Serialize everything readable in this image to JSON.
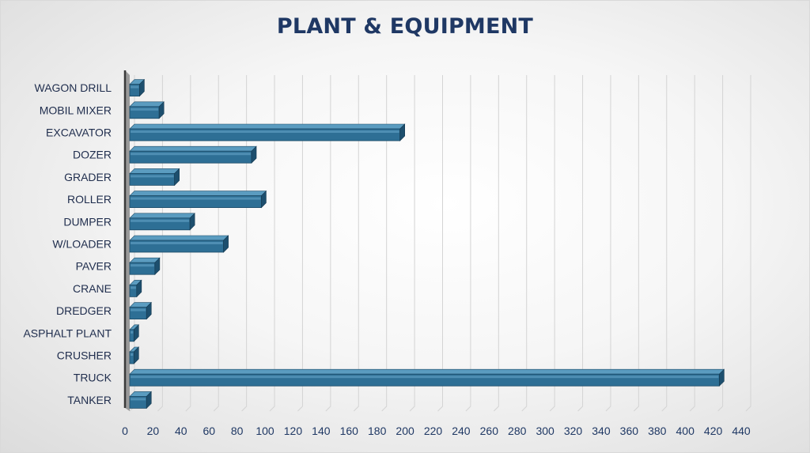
{
  "chart_data": {
    "type": "bar",
    "orientation": "horizontal",
    "title": "PLANT & EQUIPMENT",
    "xlabel": "",
    "ylabel": "",
    "categories": [
      "WAGON DRILL",
      "MOBIL MIXER",
      "EXCAVATOR",
      "DOZER",
      "GRADER",
      "ROLLER",
      "DUMPER",
      "W/LOADER",
      "PAVER",
      "CRANE",
      "DREDGER",
      "ASPHALT PLANT",
      "CRUSHER",
      "TRUCK",
      "TANKER"
    ],
    "values": [
      7,
      21,
      193,
      87,
      32,
      94,
      43,
      67,
      18,
      5,
      12,
      3,
      3,
      421,
      12
    ],
    "xlim": [
      0,
      440
    ],
    "xticks": [
      0,
      20,
      40,
      60,
      80,
      100,
      120,
      140,
      160,
      180,
      200,
      220,
      240,
      260,
      280,
      300,
      320,
      340,
      360,
      380,
      400,
      420,
      440
    ],
    "grid": true,
    "legend": "none",
    "colors": {
      "bar": "#2e6f95",
      "bar_top": "#5b9cc0",
      "bar_end": "#1d4f6e",
      "title": "#1f3864",
      "grid": "#d4d4d4"
    }
  }
}
